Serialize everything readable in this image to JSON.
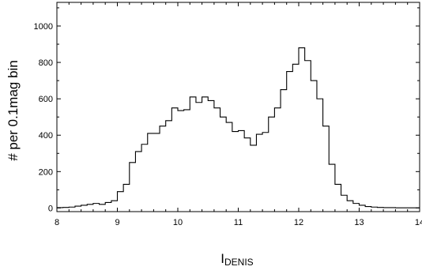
{
  "chart_data": {
    "type": "histogram",
    "title": "",
    "xlabel": "I",
    "xlabel_subscript": "DENIS",
    "ylabel": "# per 0.1mag bin",
    "xlim": [
      8,
      14
    ],
    "ylim": [
      -20,
      1130
    ],
    "x_ticks": [
      8,
      9,
      10,
      11,
      12,
      13,
      14
    ],
    "y_ticks": [
      0,
      200,
      400,
      600,
      800,
      1000
    ],
    "x_tick_labels": [
      "8",
      "9",
      "10",
      "11",
      "12",
      "13",
      "14"
    ],
    "y_tick_labels": [
      "0",
      "200",
      "400",
      "600",
      "800",
      "1000"
    ],
    "bin_width": 0.1,
    "bin_starts": [
      8.0,
      8.1,
      8.2,
      8.3,
      8.4,
      8.5,
      8.6,
      8.7,
      8.8,
      8.9,
      9.0,
      9.1,
      9.2,
      9.3,
      9.4,
      9.5,
      9.6,
      9.7,
      9.8,
      9.9,
      10.0,
      10.1,
      10.2,
      10.3,
      10.4,
      10.5,
      10.6,
      10.7,
      10.8,
      10.9,
      11.0,
      11.1,
      11.2,
      11.3,
      11.4,
      11.5,
      11.6,
      11.7,
      11.8,
      11.9,
      12.0,
      12.1,
      12.2,
      12.3,
      12.4,
      12.5,
      12.6,
      12.7,
      12.8,
      12.9,
      13.0,
      13.1,
      13.2,
      13.3,
      13.4,
      13.5,
      13.6,
      13.7,
      13.8,
      13.9
    ],
    "counts": [
      2,
      3,
      5,
      10,
      15,
      20,
      25,
      20,
      30,
      40,
      90,
      130,
      250,
      310,
      350,
      410,
      410,
      450,
      480,
      550,
      535,
      540,
      610,
      580,
      610,
      590,
      550,
      500,
      470,
      420,
      425,
      385,
      345,
      405,
      415,
      500,
      550,
      650,
      750,
      790,
      880,
      810,
      700,
      600,
      450,
      240,
      130,
      70,
      40,
      25,
      15,
      8,
      5,
      3,
      2,
      2,
      1,
      1,
      1,
      1
    ],
    "grid": false,
    "legend": "none",
    "line_color": "#000000"
  }
}
